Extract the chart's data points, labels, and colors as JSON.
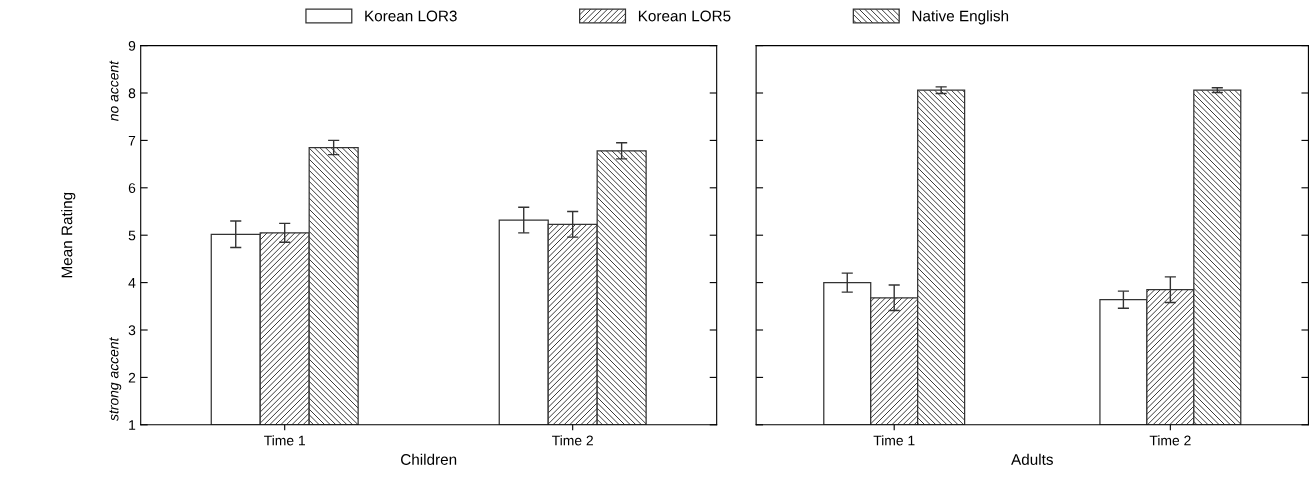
{
  "chart_data": [
    {
      "type": "bar",
      "categories": [
        "Time 1",
        "Time 2"
      ],
      "xlabel": "Children",
      "ylabel": "Mean Rating",
      "ylim": [
        1,
        9
      ],
      "yticks": [
        1,
        2,
        3,
        4,
        5,
        6,
        7,
        8,
        9
      ],
      "legend": "top",
      "grid": false,
      "annotations": [
        "no accent",
        "strong accent"
      ],
      "series": [
        {
          "name": "Korean LOR3",
          "color": "#ffffff",
          "values": [
            5.02,
            5.32
          ],
          "errors": [
            0.28,
            0.27
          ]
        },
        {
          "name": "Korean LOR5",
          "color": "#333333",
          "values": [
            5.05,
            5.23
          ],
          "errors": [
            0.2,
            0.27
          ]
        },
        {
          "name": "Native English",
          "color": "#333333",
          "values": [
            6.85,
            6.78
          ],
          "errors": [
            0.15,
            0.17
          ]
        }
      ]
    },
    {
      "type": "bar",
      "categories": [
        "Time 1",
        "Time 2"
      ],
      "xlabel": "Adults",
      "ylim": [
        1,
        9
      ],
      "yticks": [
        1,
        2,
        3,
        4,
        5,
        6,
        7,
        8,
        9
      ],
      "tick_labels": "x",
      "grid": false,
      "series": [
        {
          "color": "#ffffff",
          "values": [
            4.0,
            3.64
          ],
          "errors": [
            0.2,
            0.18
          ]
        },
        {
          "color": "#333333",
          "values": [
            3.68,
            3.85
          ],
          "errors": [
            0.27,
            0.27
          ]
        },
        {
          "color": "#333333",
          "values": [
            8.06,
            8.06
          ],
          "errors": [
            0.07,
            0.05
          ]
        }
      ]
    }
  ]
}
